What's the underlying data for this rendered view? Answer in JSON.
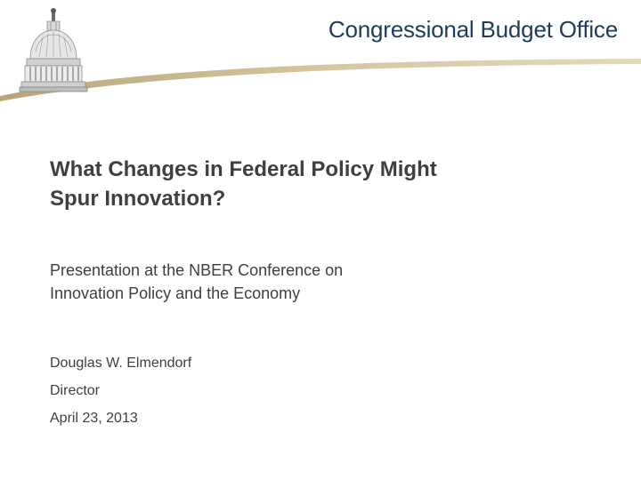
{
  "header": {
    "organization": "Congressional Budget Office",
    "logo_icon": "capitol-dome-icon",
    "accent_color": "#c9b88e",
    "text_color": "#1f3b5c"
  },
  "title": {
    "line1": "What Changes in Federal Policy Might",
    "line2": "Spur Innovation?"
  },
  "subtitle": {
    "line1": "Presentation at the NBER Conference on",
    "line2": "Innovation Policy and the Economy"
  },
  "presenter": {
    "name": "Douglas W. Elmendorf",
    "role": "Director",
    "date": "April 23, 2013"
  }
}
